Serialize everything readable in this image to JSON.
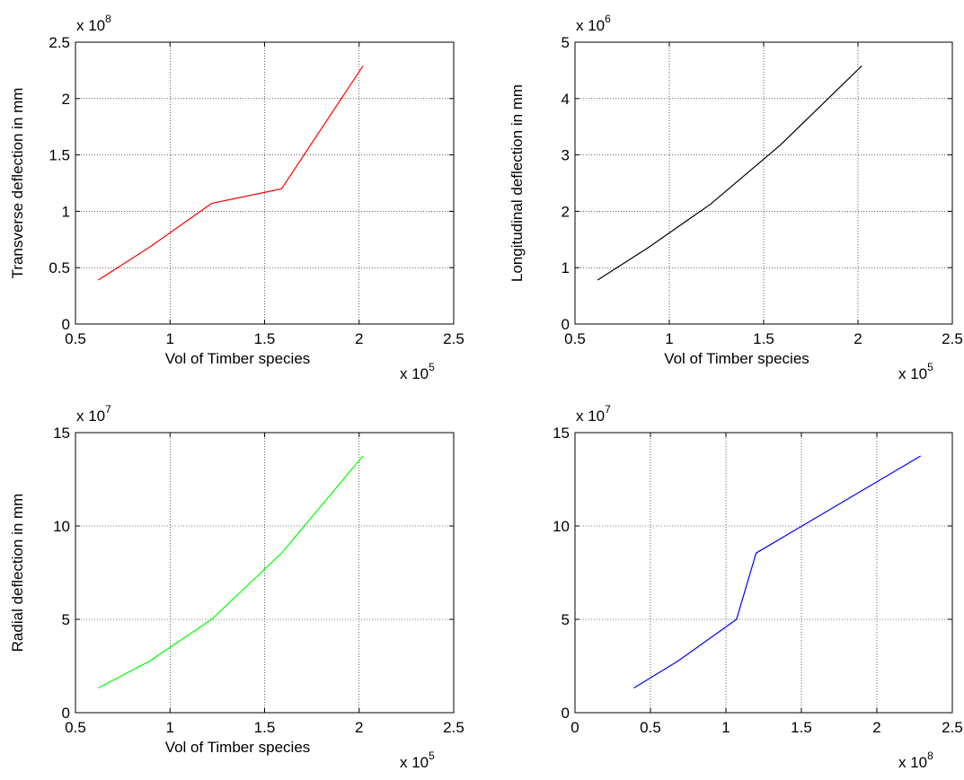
{
  "chart_data": [
    {
      "type": "line",
      "xlabel": "Vol of Timber species",
      "ylabel": "Transverse deflection in mm",
      "x_exponent": "5",
      "y_exponent": "8",
      "xlim": [
        0.5,
        2.5
      ],
      "ylim": [
        0,
        2.5
      ],
      "xticks": [
        "0.5",
        "1",
        "1.5",
        "2",
        "2.5"
      ],
      "yticks": [
        "0",
        "0.5",
        "1",
        "1.5",
        "2",
        "2.5"
      ],
      "grid": true,
      "line_color": "#ff0000",
      "series": [
        {
          "x": [
            0.62,
            0.89,
            1.22,
            1.59,
            2.02
          ],
          "y": [
            0.39,
            0.68,
            1.07,
            1.2,
            2.29
          ]
        }
      ]
    },
    {
      "type": "line",
      "xlabel": "Vol of Timber species",
      "ylabel": "Longitudinal deflection in mm",
      "x_exponent": "5",
      "y_exponent": "6",
      "xlim": [
        0.5,
        2.5
      ],
      "ylim": [
        0,
        5
      ],
      "xticks": [
        "0.5",
        "1",
        "1.5",
        "2",
        "2.5"
      ],
      "yticks": [
        "0",
        "1",
        "2",
        "3",
        "4",
        "5"
      ],
      "grid": true,
      "line_color": "#000000",
      "series": [
        {
          "x": [
            0.62,
            0.89,
            1.22,
            1.59,
            2.02
          ],
          "y": [
            0.78,
            1.36,
            2.13,
            3.18,
            4.58
          ]
        }
      ]
    },
    {
      "type": "line",
      "xlabel": "Vol of Timber species",
      "ylabel": "Radial deflection in mm",
      "x_exponent": "5",
      "y_exponent": "7",
      "xlim": [
        0.5,
        2.5
      ],
      "ylim": [
        0,
        15
      ],
      "xticks": [
        "0.5",
        "1",
        "1.5",
        "2",
        "2.5"
      ],
      "yticks": [
        "0",
        "5",
        "10",
        "15"
      ],
      "grid": true,
      "line_color": "#00ff00",
      "series": [
        {
          "x": [
            0.62,
            0.89,
            1.22,
            1.59,
            2.02
          ],
          "y": [
            1.32,
            2.75,
            5.0,
            8.55,
            13.75
          ]
        }
      ]
    },
    {
      "type": "line",
      "xlabel": "",
      "ylabel": "",
      "x_exponent": "8",
      "y_exponent": "7",
      "xlim": [
        0,
        2.5
      ],
      "ylim": [
        0,
        15
      ],
      "xticks": [
        "0",
        "0.5",
        "1",
        "1.5",
        "2",
        "2.5"
      ],
      "yticks": [
        "0",
        "5",
        "10",
        "15"
      ],
      "grid": true,
      "line_color": "#0000ff",
      "series": [
        {
          "x": [
            0.39,
            0.68,
            1.07,
            1.2,
            2.29
          ],
          "y": [
            1.32,
            2.75,
            5.0,
            8.55,
            13.75
          ]
        }
      ]
    }
  ]
}
